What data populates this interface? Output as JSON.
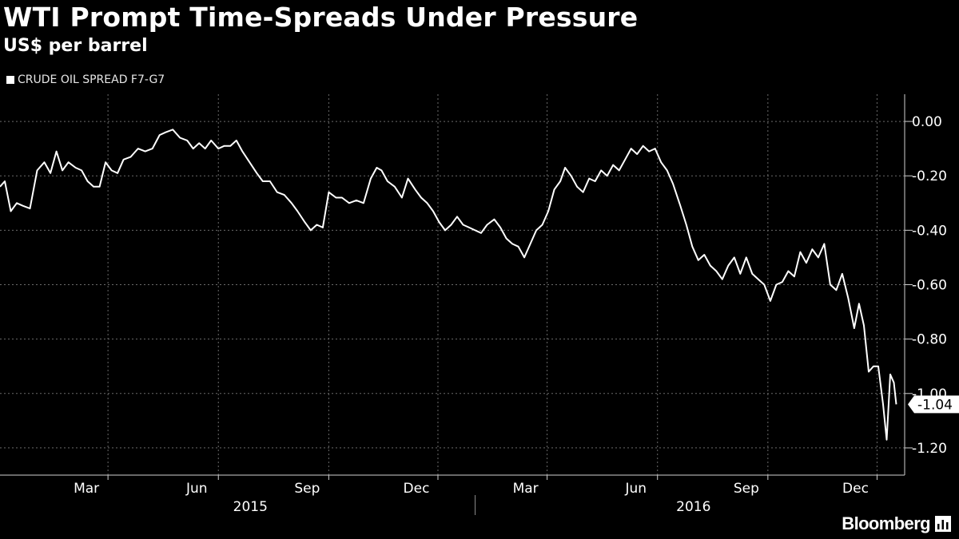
{
  "chart_data": {
    "type": "line",
    "title": "WTI Prompt Time-Spreads Under Pressure",
    "subtitle": "US$ per barrel",
    "series": [
      {
        "name": "CRUDE OIL SPREAD F7-G7",
        "color": "#ffffff",
        "last_value_label": "-1.04",
        "points": [
          [
            "2014-12-01",
            -0.24
          ],
          [
            "2014-12-05",
            -0.22
          ],
          [
            "2014-12-10",
            -0.33
          ],
          [
            "2014-12-15",
            -0.3
          ],
          [
            "2014-12-20",
            -0.31
          ],
          [
            "2014-12-26",
            -0.32
          ],
          [
            "2015-01-01",
            -0.18
          ],
          [
            "2015-01-07",
            -0.15
          ],
          [
            "2015-01-12",
            -0.19
          ],
          [
            "2015-01-17",
            -0.11
          ],
          [
            "2015-01-22",
            -0.18
          ],
          [
            "2015-01-27",
            -0.15
          ],
          [
            "2015-02-02",
            -0.17
          ],
          [
            "2015-02-07",
            -0.18
          ],
          [
            "2015-02-12",
            -0.22
          ],
          [
            "2015-02-17",
            -0.24
          ],
          [
            "2015-02-22",
            -0.24
          ],
          [
            "2015-02-27",
            -0.15
          ],
          [
            "2015-03-04",
            -0.18
          ],
          [
            "2015-03-09",
            -0.19
          ],
          [
            "2015-03-14",
            -0.14
          ],
          [
            "2015-03-20",
            -0.13
          ],
          [
            "2015-03-26",
            -0.1
          ],
          [
            "2015-04-01",
            -0.11
          ],
          [
            "2015-04-07",
            -0.1
          ],
          [
            "2015-04-13",
            -0.05
          ],
          [
            "2015-04-18",
            -0.04
          ],
          [
            "2015-04-24",
            -0.03
          ],
          [
            "2015-04-30",
            -0.06
          ],
          [
            "2015-05-06",
            -0.07
          ],
          [
            "2015-05-11",
            -0.1
          ],
          [
            "2015-05-16",
            -0.08
          ],
          [
            "2015-05-21",
            -0.1
          ],
          [
            "2015-05-26",
            -0.07
          ],
          [
            "2015-06-01",
            -0.1
          ],
          [
            "2015-06-06",
            -0.09
          ],
          [
            "2015-06-11",
            -0.09
          ],
          [
            "2015-06-16",
            -0.07
          ],
          [
            "2015-06-21",
            -0.11
          ],
          [
            "2015-06-27",
            -0.15
          ],
          [
            "2015-07-03",
            -0.19
          ],
          [
            "2015-07-08",
            -0.22
          ],
          [
            "2015-07-14",
            -0.22
          ],
          [
            "2015-07-20",
            -0.26
          ],
          [
            "2015-07-26",
            -0.27
          ],
          [
            "2015-08-01",
            -0.3
          ],
          [
            "2015-08-06",
            -0.33
          ],
          [
            "2015-08-12",
            -0.37
          ],
          [
            "2015-08-17",
            -0.4
          ],
          [
            "2015-08-22",
            -0.38
          ],
          [
            "2015-08-27",
            -0.39
          ],
          [
            "2015-09-01",
            -0.26
          ],
          [
            "2015-09-07",
            -0.28
          ],
          [
            "2015-09-12",
            -0.28
          ],
          [
            "2015-09-18",
            -0.3
          ],
          [
            "2015-09-24",
            -0.29
          ],
          [
            "2015-09-30",
            -0.3
          ],
          [
            "2015-10-06",
            -0.21
          ],
          [
            "2015-10-11",
            -0.17
          ],
          [
            "2015-10-15",
            -0.18
          ],
          [
            "2015-10-20",
            -0.22
          ],
          [
            "2015-10-26",
            -0.24
          ],
          [
            "2015-11-01",
            -0.28
          ],
          [
            "2015-11-06",
            -0.21
          ],
          [
            "2015-11-12",
            -0.25
          ],
          [
            "2015-11-17",
            -0.28
          ],
          [
            "2015-11-22",
            -0.3
          ],
          [
            "2015-11-27",
            -0.33
          ],
          [
            "2015-12-02",
            -0.37
          ],
          [
            "2015-12-07",
            -0.4
          ],
          [
            "2015-12-12",
            -0.38
          ],
          [
            "2015-12-17",
            -0.35
          ],
          [
            "2015-12-22",
            -0.38
          ],
          [
            "2015-12-27",
            -0.39
          ],
          [
            "2016-01-01",
            -0.4
          ],
          [
            "2016-01-06",
            -0.41
          ],
          [
            "2016-01-11",
            -0.38
          ],
          [
            "2016-01-17",
            -0.36
          ],
          [
            "2016-01-22",
            -0.39
          ],
          [
            "2016-01-27",
            -0.43
          ],
          [
            "2016-02-01",
            -0.45
          ],
          [
            "2016-02-06",
            -0.46
          ],
          [
            "2016-02-11",
            -0.5
          ],
          [
            "2016-02-16",
            -0.45
          ],
          [
            "2016-02-21",
            -0.4
          ],
          [
            "2016-02-26",
            -0.38
          ],
          [
            "2016-03-02",
            -0.33
          ],
          [
            "2016-03-07",
            -0.25
          ],
          [
            "2016-03-12",
            -0.22
          ],
          [
            "2016-03-16",
            -0.17
          ],
          [
            "2016-03-21",
            -0.2
          ],
          [
            "2016-03-26",
            -0.24
          ],
          [
            "2016-03-31",
            -0.26
          ],
          [
            "2016-04-05",
            -0.21
          ],
          [
            "2016-04-10",
            -0.22
          ],
          [
            "2016-04-15",
            -0.18
          ],
          [
            "2016-04-20",
            -0.2
          ],
          [
            "2016-04-25",
            -0.16
          ],
          [
            "2016-04-30",
            -0.18
          ],
          [
            "2016-05-05",
            -0.14
          ],
          [
            "2016-05-10",
            -0.1
          ],
          [
            "2016-05-15",
            -0.12
          ],
          [
            "2016-05-20",
            -0.09
          ],
          [
            "2016-05-25",
            -0.11
          ],
          [
            "2016-05-30",
            -0.1
          ],
          [
            "2016-06-04",
            -0.15
          ],
          [
            "2016-06-09",
            -0.18
          ],
          [
            "2016-06-14",
            -0.23
          ],
          [
            "2016-06-20",
            -0.31
          ],
          [
            "2016-06-25",
            -0.38
          ],
          [
            "2016-06-30",
            -0.46
          ],
          [
            "2016-07-05",
            -0.51
          ],
          [
            "2016-07-10",
            -0.49
          ],
          [
            "2016-07-15",
            -0.53
          ],
          [
            "2016-07-20",
            -0.55
          ],
          [
            "2016-07-25",
            -0.58
          ],
          [
            "2016-07-30",
            -0.53
          ],
          [
            "2016-08-04",
            -0.5
          ],
          [
            "2016-08-09",
            -0.56
          ],
          [
            "2016-08-14",
            -0.5
          ],
          [
            "2016-08-19",
            -0.56
          ],
          [
            "2016-08-24",
            -0.58
          ],
          [
            "2016-08-29",
            -0.6
          ],
          [
            "2016-09-03",
            -0.66
          ],
          [
            "2016-09-08",
            -0.6
          ],
          [
            "2016-09-13",
            -0.59
          ],
          [
            "2016-09-18",
            -0.55
          ],
          [
            "2016-09-23",
            -0.57
          ],
          [
            "2016-09-28",
            -0.48
          ],
          [
            "2016-10-03",
            -0.52
          ],
          [
            "2016-10-08",
            -0.47
          ],
          [
            "2016-10-13",
            -0.5
          ],
          [
            "2016-10-18",
            -0.45
          ],
          [
            "2016-10-23",
            -0.6
          ],
          [
            "2016-10-28",
            -0.62
          ],
          [
            "2016-11-02",
            -0.56
          ],
          [
            "2016-11-07",
            -0.65
          ],
          [
            "2016-11-12",
            -0.76
          ],
          [
            "2016-11-16",
            -0.67
          ],
          [
            "2016-11-20",
            -0.75
          ],
          [
            "2016-11-24",
            -0.92
          ],
          [
            "2016-11-28",
            -0.9
          ],
          [
            "2016-12-02",
            -0.9
          ],
          [
            "2016-12-06",
            -1.04
          ],
          [
            "2016-12-09",
            -1.17
          ],
          [
            "2016-12-12",
            -0.93
          ],
          [
            "2016-12-15",
            -0.96
          ],
          [
            "2016-12-17",
            -1.04
          ]
        ]
      }
    ],
    "xlim": [
      "2014-12-01",
      "2016-12-24"
    ],
    "ylim": [
      -1.3,
      0.1
    ],
    "y_ticks": [
      0.0,
      -0.2,
      -0.4,
      -0.6,
      -0.8,
      -1.0,
      -1.2
    ],
    "y_tick_labels": [
      "0.00",
      "-0.20",
      "-0.40",
      "-0.60",
      "-0.80",
      "-1.00",
      "-1.20"
    ],
    "y_axis_side": "right",
    "x_ticks": [
      {
        "date": "2015-03-01",
        "label": "Mar"
      },
      {
        "date": "2015-06-01",
        "label": "Jun"
      },
      {
        "date": "2015-09-01",
        "label": "Sep"
      },
      {
        "date": "2015-12-01",
        "label": "Dec"
      },
      {
        "date": "2016-03-01",
        "label": "Mar"
      },
      {
        "date": "2016-06-01",
        "label": "Jun"
      },
      {
        "date": "2016-09-01",
        "label": "Sep"
      },
      {
        "date": "2016-12-01",
        "label": "Dec"
      }
    ],
    "year_labels": [
      {
        "label": "2015"
      },
      {
        "label": "2016"
      }
    ],
    "grid": true,
    "legend_position": "top-left"
  },
  "footer": {
    "brand": "Bloomberg"
  },
  "colors": {
    "background": "#000000",
    "line": "#ffffff",
    "grid": "#6b6b6b",
    "text": "#ffffff"
  }
}
